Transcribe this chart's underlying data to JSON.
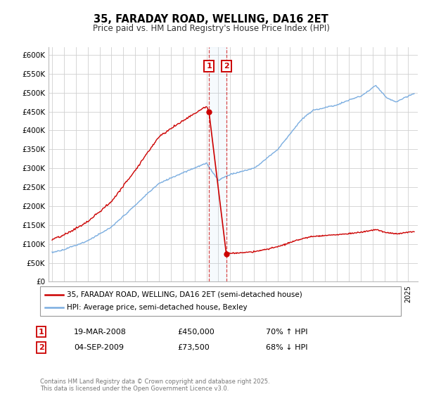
{
  "title": "35, FARADAY ROAD, WELLING, DA16 2ET",
  "subtitle": "Price paid vs. HM Land Registry's House Price Index (HPI)",
  "legend_line1": "35, FARADAY ROAD, WELLING, DA16 2ET (semi-detached house)",
  "legend_line2": "HPI: Average price, semi-detached house, Bexley",
  "transaction1_date": "19-MAR-2008",
  "transaction1_price": "£450,000",
  "transaction1_hpi": "70% ↑ HPI",
  "transaction1_year": 2008.21,
  "transaction1_value": 450000,
  "transaction2_date": "04-SEP-2009",
  "transaction2_price": "£73,500",
  "transaction2_hpi": "68% ↓ HPI",
  "transaction2_year": 2009.67,
  "transaction2_value": 73500,
  "ylim": [
    0,
    620000
  ],
  "yticks": [
    0,
    50000,
    100000,
    150000,
    200000,
    250000,
    300000,
    350000,
    400000,
    450000,
    500000,
    550000,
    600000
  ],
  "ytick_labels": [
    "£0",
    "£50K",
    "£100K",
    "£150K",
    "£200K",
    "£250K",
    "£300K",
    "£350K",
    "£400K",
    "£450K",
    "£500K",
    "£550K",
    "£600K"
  ],
  "hpi_color": "#7aade0",
  "price_color": "#cc0000",
  "background_color": "#ffffff",
  "grid_color": "#d0d0d0",
  "footer": "Contains HM Land Registry data © Crown copyright and database right 2025.\nThis data is licensed under the Open Government Licence v3.0.",
  "xlim_start": 1994.7,
  "xlim_end": 2025.8
}
